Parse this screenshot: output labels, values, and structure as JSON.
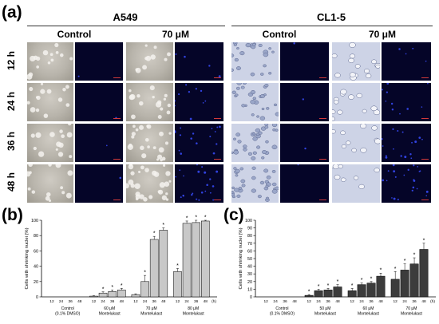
{
  "panel_a": {
    "letter": "(a)",
    "cell_lines": [
      "A549",
      "CL1-5"
    ],
    "conditions": [
      "Control",
      "70 μM"
    ],
    "timepoints": [
      "12 h",
      "24 h",
      "36 h",
      "48 h"
    ],
    "colors": {
      "brightfield_a549": "#b8b4ab",
      "brightfield_cl15": "#cdd3e6",
      "fluorescence": "#050528",
      "nuclei": "#3a4dff",
      "scale_bar": "#d23a3a"
    }
  },
  "panel_b": {
    "letter": "(b)"
  },
  "panel_c": {
    "letter": "(c)"
  },
  "chart_data": [
    {
      "type": "bar",
      "panel": "(b)",
      "ylabel": "Cells with shrinking nuclei (%)",
      "ylim": [
        0,
        100
      ],
      "yticks": [
        0,
        20,
        40,
        60,
        80,
        100
      ],
      "x_unit": "(h)",
      "tick_labels": [
        "12",
        "24",
        "36",
        "48"
      ],
      "bar_color": "#c8c8c8",
      "groups": [
        {
          "label_lines": [
            "Control",
            "(0.1% DMSO)"
          ],
          "values": [
            0,
            0,
            0,
            0
          ],
          "errors": [
            0,
            0,
            0,
            0
          ],
          "significant": [
            false,
            false,
            false,
            false
          ]
        },
        {
          "label_lines": [
            "60 μM",
            "Montelukast"
          ],
          "values": [
            1,
            5,
            7,
            9
          ],
          "errors": [
            0.5,
            1.5,
            2,
            2
          ],
          "significant": [
            false,
            true,
            true,
            true
          ]
        },
        {
          "label_lines": [
            "70 μM",
            "Montelukast"
          ],
          "values": [
            3,
            20,
            75,
            87
          ],
          "errors": [
            1,
            8,
            4,
            3
          ],
          "significant": [
            false,
            true,
            true,
            true
          ]
        },
        {
          "label_lines": [
            "80 μM",
            "Montelukast"
          ],
          "values": [
            33,
            96,
            97,
            99
          ],
          "errors": [
            4,
            3,
            3,
            1
          ],
          "significant": [
            true,
            true,
            true,
            true
          ]
        }
      ]
    },
    {
      "type": "bar",
      "panel": "(c)",
      "ylabel": "Cells with shrinking nuclei (%)",
      "ylim": [
        0,
        100
      ],
      "yticks": [
        0,
        10,
        20,
        30,
        40,
        50,
        60,
        70,
        80,
        90,
        100
      ],
      "x_unit": "(h)",
      "tick_labels": [
        "12",
        "24",
        "36",
        "48"
      ],
      "bar_color": "#3c3c3c",
      "groups": [
        {
          "label_lines": [
            "Control",
            "(0.1% DMSO)"
          ],
          "values": [
            0,
            0,
            0,
            0
          ],
          "errors": [
            0,
            0,
            0,
            0
          ],
          "significant": [
            false,
            false,
            false,
            false
          ]
        },
        {
          "label_lines": [
            "50 μM",
            "Montelukast"
          ],
          "values": [
            2,
            8,
            9,
            13
          ],
          "errors": [
            1,
            2,
            2,
            3
          ],
          "significant": [
            true,
            true,
            true,
            true
          ]
        },
        {
          "label_lines": [
            "60 μM",
            "Montelukast"
          ],
          "values": [
            8,
            16,
            18,
            27
          ],
          "errors": [
            3,
            2,
            2,
            4
          ],
          "significant": [
            true,
            true,
            true,
            true
          ]
        },
        {
          "label_lines": [
            "70 μM",
            "Montelukast"
          ],
          "values": [
            23,
            35,
            43,
            62
          ],
          "errors": [
            10,
            8,
            8,
            8
          ],
          "significant": [
            true,
            true,
            true,
            true
          ]
        }
      ]
    }
  ]
}
